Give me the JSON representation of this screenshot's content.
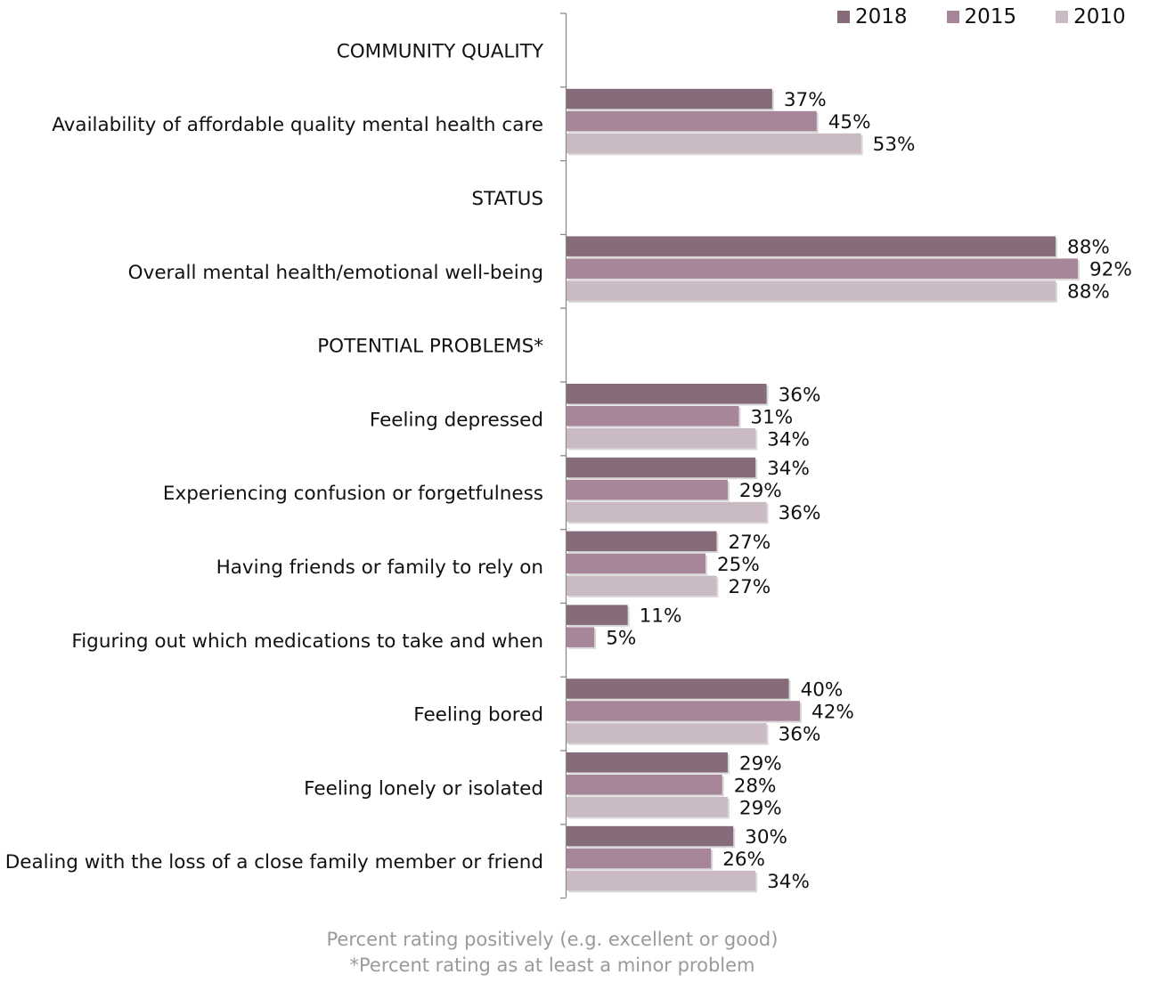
{
  "chart_data": {
    "type": "bar",
    "orientation": "horizontal",
    "series": [
      {
        "name": "2018",
        "color": "#866C7A"
      },
      {
        "name": "2015",
        "color": "#A8869A"
      },
      {
        "name": "2010",
        "color": "#CABAC4"
      }
    ],
    "rows": [
      {
        "label": "COMMUNITY QUALITY",
        "header": true
      },
      {
        "label": "Availability of affordable quality mental health care",
        "values": [
          37,
          45,
          53
        ],
        "value_labels": [
          "37%",
          "45%",
          "53%"
        ]
      },
      {
        "label": "STATUS",
        "header": true
      },
      {
        "label": "Overall mental health/emotional well-being",
        "values": [
          88,
          92,
          88
        ],
        "value_labels": [
          "88%",
          "92%",
          "88%"
        ]
      },
      {
        "label": "POTENTIAL PROBLEMS*",
        "header": true
      },
      {
        "label": "Feeling depressed",
        "values": [
          36,
          31,
          34
        ],
        "value_labels": [
          "36%",
          "31%",
          "34%"
        ]
      },
      {
        "label": "Experiencing confusion or forgetfulness",
        "values": [
          34,
          29,
          36
        ],
        "value_labels": [
          "34%",
          "29%",
          "36%"
        ]
      },
      {
        "label": "Having friends or family to rely on",
        "values": [
          27,
          25,
          27
        ],
        "value_labels": [
          "27%",
          "25%",
          "27%"
        ]
      },
      {
        "label": "Figuring out which medications to take and when",
        "values": [
          11,
          5,
          null
        ],
        "value_labels": [
          "11%",
          "5%",
          null
        ]
      },
      {
        "label": "Feeling bored",
        "values": [
          40,
          42,
          36
        ],
        "value_labels": [
          "40%",
          "42%",
          "36%"
        ]
      },
      {
        "label": "Feeling lonely or isolated",
        "values": [
          29,
          28,
          29
        ],
        "value_labels": [
          "29%",
          "28%",
          "29%"
        ]
      },
      {
        "label": "Dealing with the loss of a close family member or friend",
        "values": [
          30,
          26,
          34
        ],
        "value_labels": [
          "30%",
          "26%",
          "34%"
        ]
      }
    ],
    "xlim": [
      0,
      92
    ],
    "grid": false,
    "legend_position": "top-right"
  },
  "notes": {
    "line1": "Percent rating positively (e.g. excellent or good)",
    "line2": "*Percent rating as at least a minor problem"
  }
}
